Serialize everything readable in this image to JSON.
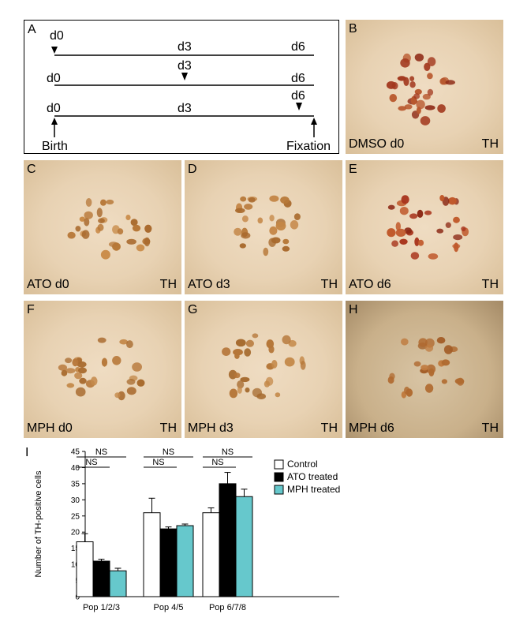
{
  "panel_a": {
    "letter": "A",
    "row1": {
      "start": "d0",
      "mid": "d3",
      "end": "d6"
    },
    "row2": {
      "start": "d0",
      "mid": "d3",
      "end": "d6"
    },
    "row3": {
      "start": "d0",
      "mid": "d3",
      "end": "d6"
    },
    "birth": "Birth",
    "fixation": "Fixation"
  },
  "panels": [
    {
      "id": "b",
      "letter": "B",
      "condition": "DMSO d0",
      "stain": "TH"
    },
    {
      "id": "c",
      "letter": "C",
      "condition": "ATO d0",
      "stain": "TH"
    },
    {
      "id": "d",
      "letter": "D",
      "condition": "ATO d3",
      "stain": "TH"
    },
    {
      "id": "e",
      "letter": "E",
      "condition": "ATO d6",
      "stain": "TH"
    },
    {
      "id": "f",
      "letter": "F",
      "condition": "MPH d0",
      "stain": "TH"
    },
    {
      "id": "g",
      "letter": "G",
      "condition": "MPH d3",
      "stain": "TH"
    },
    {
      "id": "h",
      "letter": "H",
      "condition": "MPH d6",
      "stain": "TH"
    }
  ],
  "panel_i_letter": "I",
  "chart_data": {
    "type": "bar",
    "categories": [
      "Pop 1/2/3",
      "Pop 4/5",
      "Pop 6/7/8"
    ],
    "series": [
      {
        "name": "Control",
        "values": [
          17,
          26,
          26
        ],
        "errors": [
          2.5,
          4.5,
          1.5
        ],
        "color": "#ffffff"
      },
      {
        "name": "ATO treated",
        "values": [
          11,
          21,
          35
        ],
        "errors": [
          0.6,
          0.6,
          3.5
        ],
        "color": "#000000"
      },
      {
        "name": "MPH treated",
        "values": [
          8,
          22,
          31
        ],
        "errors": [
          0.8,
          0.5,
          2.3
        ],
        "color": "#66c8cc"
      }
    ],
    "ylabel": "Number of TH-positive cells",
    "ylim": [
      0,
      45
    ],
    "yticks": [
      0,
      5,
      10,
      15,
      20,
      25,
      30,
      35,
      40,
      45
    ],
    "significance": "NS",
    "legend": "top-right"
  }
}
